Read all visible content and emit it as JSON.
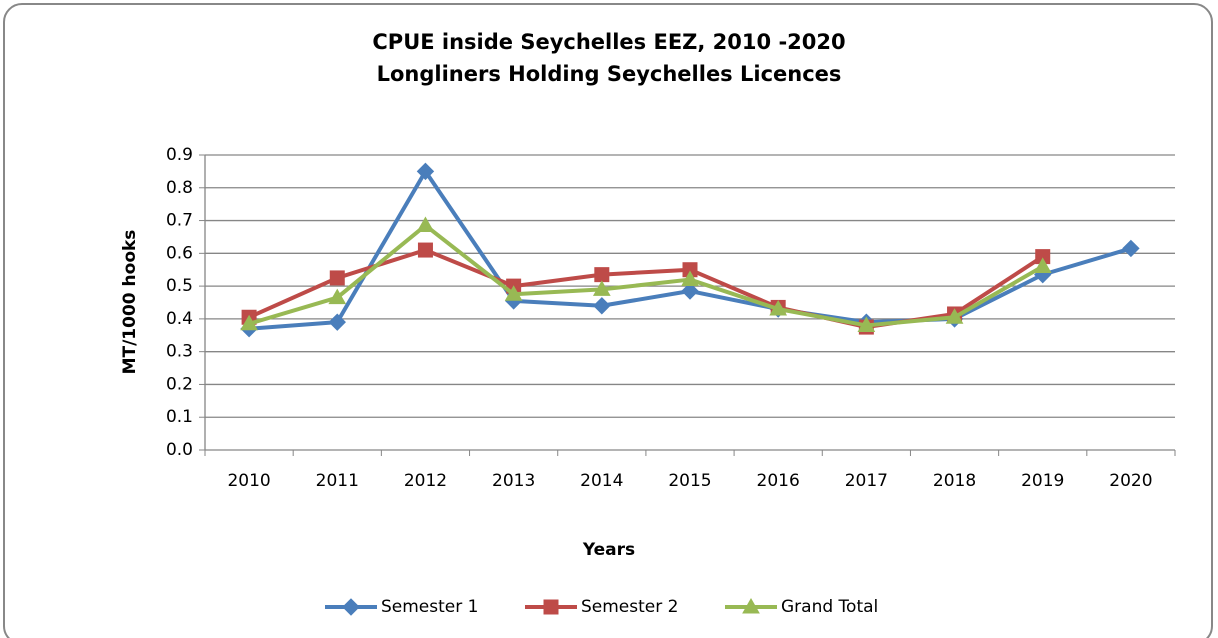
{
  "chart_data": {
    "type": "line",
    "title": "CPUE  inside  Seychelles EEZ, 2010 -2020",
    "subtitle": "Longliners Holding Seychelles Licences",
    "x_label": "Years",
    "y_label": "MT/1000 hooks",
    "categories": [
      "2010",
      "2011",
      "2012",
      "2013",
      "2014",
      "2015",
      "2016",
      "2017",
      "2018",
      "2019",
      "2020"
    ],
    "series": [
      {
        "name": "Semester 1",
        "color": "#4a7ebb",
        "marker": "diamond",
        "values": [
          0.37,
          0.39,
          0.85,
          0.455,
          0.44,
          0.485,
          0.43,
          0.39,
          0.4,
          0.535,
          0.615
        ]
      },
      {
        "name": "Semester 2",
        "color": "#be4b48",
        "marker": "square",
        "values": [
          0.405,
          0.525,
          0.61,
          0.5,
          0.535,
          0.55,
          0.435,
          0.375,
          0.415,
          0.59,
          null
        ]
      },
      {
        "name": "Grand Total",
        "color": "#98b954",
        "marker": "triangle",
        "values": [
          0.385,
          0.465,
          0.685,
          0.475,
          0.49,
          0.52,
          0.43,
          0.38,
          0.405,
          0.56,
          null
        ]
      }
    ],
    "ylim": [
      0,
      0.9
    ],
    "yticks": [
      {
        "value": 0,
        "label": "0.0"
      },
      0.1,
      0.2,
      0.3,
      0.4,
      0.5,
      0.6,
      0.7,
      0.8,
      0.9
    ],
    "grid": true,
    "legend": "bottom"
  }
}
